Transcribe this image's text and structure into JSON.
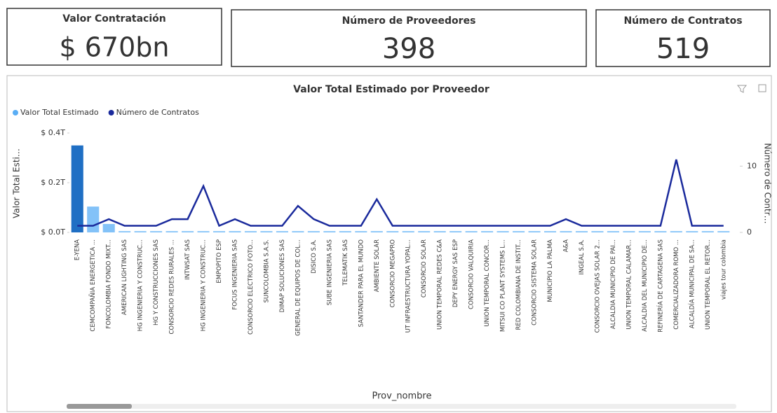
{
  "cards": [
    {
      "title": "Valor Contratación",
      "value": "$ 670bn"
    },
    {
      "title": "Número de Proveedores",
      "value": "398"
    },
    {
      "title": "Número de Contratos",
      "value": "519"
    }
  ],
  "chart_data": {
    "type": "bar-line",
    "title": "Valor Total Estimado por Proveedor",
    "x_label": "Prov_nombre",
    "y_label": "Valor Total Esti…",
    "y2_label": "Número de Contr…",
    "categories": [
      "E-YENA",
      "CEMCOMPAÑIA ENERGETICA ...",
      "FONCOLOMBIA FONDO MIXT...",
      "AMERICAN LIGHTING SAS",
      "HG INGENIERIA Y CONSTRUC...",
      "HG Y CONSTRUCCIONES SAS",
      "CONSORCIO REDES RURALES ...",
      "INTWSAT SAS",
      "HG INGENIERIA Y CONSTRUC...",
      "EMPOPITO ESP",
      "FOCUS INGENIERIA SAS",
      "CONSORCIO ELECTRICO FOTO...",
      "SUNCOLOMBIA S.A.S.",
      "DIMAP SOLUCIONES SAS",
      "GENERAL DE EQUIPOS DE COL...",
      "DISICO S.A.",
      "SUBE INGENIERIA SAS",
      "TELEMATIK SAS",
      "SANTANDER PARA EL MUNDO",
      "AMBIENTE SOLAR",
      "CONSORCIO MEGAPRO",
      "UT INFRAESTRUCTURA YOPAL...",
      "CONSORCIO SOLAR",
      "UNION TEMPORAL REDES C&A",
      "DEPY ENERGY SAS ESP",
      "CONSORCIO VALQUIRIA",
      "UNION TEMPORAL CONCOR...",
      "MITSUI CO PLANT SYSTEMS L...",
      "RED COLOMBIANA DE INSTIT...",
      "CONSORCIO SISTEMA SOLAR",
      "MUNICIPIO LA PALMA",
      "A&A",
      "INGEAL S.A.",
      "CONSORCIO OVEJAS SOLAR 2...",
      "ALCALDIA MUNICIPIO DE PAI...",
      "UNION TEMPORAL CALAMAR...",
      "ALCALDIA DEL MUNICIPIO DE...",
      "REFINERÍA DE CARTAGENA SAS",
      "COMERCIALIZADORA ROMO ...",
      "ALCALDÍA MUNICIPAL DE SA...",
      "UNION TEMPORAL EL RETOR...",
      "viajes tour colombia"
    ],
    "series": [
      {
        "name": "Valor Total Estimado",
        "color": "#5aaef5",
        "values": [
          0.35,
          0.104,
          0.034,
          0.005,
          0.005,
          0.005,
          0.005,
          0.005,
          0.005,
          0.005,
          0.005,
          0.005,
          0.005,
          0.005,
          0.005,
          0.005,
          0.005,
          0.005,
          0.005,
          0.005,
          0.005,
          0.005,
          0.005,
          0.005,
          0.005,
          0.005,
          0.005,
          0.005,
          0.005,
          0.005,
          0.005,
          0.005,
          0.005,
          0.005,
          0.005,
          0.005,
          0.005,
          0.005,
          0.005,
          0.005,
          0.005,
          0.005
        ]
      },
      {
        "name": "Número de Contratos",
        "color": "#1a2a9c",
        "axis": "y2",
        "values": [
          1,
          1,
          2,
          1,
          1,
          1,
          2,
          2,
          7,
          1,
          2,
          1,
          1,
          1,
          4,
          2,
          1,
          1,
          1,
          5,
          1,
          1,
          1,
          1,
          1,
          1,
          1,
          1,
          1,
          1,
          1,
          2,
          1,
          1,
          1,
          1,
          1,
          1,
          11,
          1,
          1,
          1
        ]
      }
    ],
    "ylim": [
      0,
      0.4
    ],
    "yticks": [
      {
        "value": 0,
        "label": "$ 0.0T"
      },
      {
        "value": 0.2,
        "label": "$ 0.2T"
      },
      {
        "value": 0.4,
        "label": "$ 0.4T"
      }
    ],
    "y2lim": [
      0,
      15
    ],
    "y2ticks": [
      0,
      10
    ],
    "grid": false,
    "legend": "top-left"
  }
}
